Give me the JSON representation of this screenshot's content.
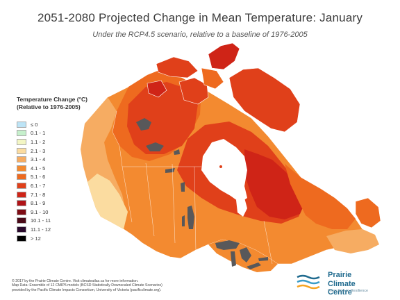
{
  "title": "2051-2080 Projected Change in Mean Temperature: January",
  "subtitle": "Under the RCP4.5 scenario, relative to a baseline of 1976-2005",
  "legend": {
    "title_line1": "Temperature Change (°C)",
    "title_line2": "(Relative to 1976-2005)",
    "items": [
      {
        "label": "≤ 0",
        "color": "#bde4f6"
      },
      {
        "label": "0.1 - 1",
        "color": "#c6f0cc"
      },
      {
        "label": "1.1 - 2",
        "color": "#f3f6c4"
      },
      {
        "label": "2.1 - 3",
        "color": "#fbdca0"
      },
      {
        "label": "3.1 - 4",
        "color": "#f6ac62"
      },
      {
        "label": "4.1 - 5",
        "color": "#f38a30"
      },
      {
        "label": "5.1 - 6",
        "color": "#ee6a1f"
      },
      {
        "label": "6.1 - 7",
        "color": "#e0401a"
      },
      {
        "label": "7.1 - 8",
        "color": "#cf2417"
      },
      {
        "label": "8.1 - 9",
        "color": "#b01317"
      },
      {
        "label": "9.1 - 10",
        "color": "#7e0c14"
      },
      {
        "label": "10.1 - 11",
        "color": "#4a0a18"
      },
      {
        "label": "11.1 - 12",
        "color": "#2a0a2c"
      },
      {
        "label": "> 12",
        "color": "#000000"
      }
    ]
  },
  "credits": [
    "© 2017 by the Prairie Climate Centre. Visit climateatlas.ca for more information.",
    "Map Data: Ensemble of 12 CMIP5 models (BCSD Statistically Downscaled Climate Scenarios)",
    "provided by the Pacific Climate Impacts Consortium, University of Victoria (pacificclimate.org)."
  ],
  "logo": {
    "line1": "Prairie",
    "line2": "Climate Centre",
    "tagline": "From Risk to Resilience"
  },
  "colors": {
    "water": "#ffffff",
    "lakes": "#58585a",
    "borders": "#ffffff",
    "logo_blue": "#1f6a8e",
    "logo_orange": "#f5a423"
  }
}
